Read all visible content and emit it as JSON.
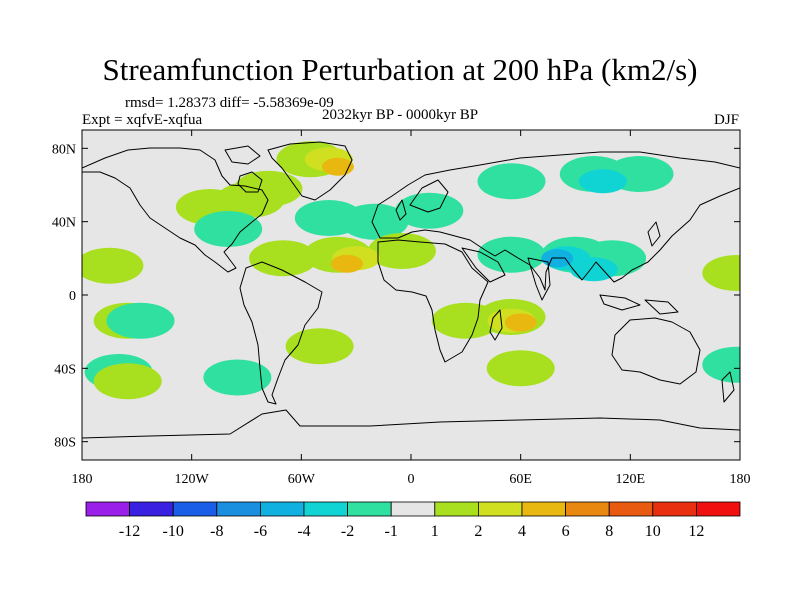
{
  "chart_data": {
    "type": "heatmap",
    "title": "Streamfunction Perturbation at 200 hPa (km2/s)",
    "stats": "rmsd= 1.28373 diff= -5.58369e-09",
    "experiment": "Expt = xqfvE-xqfua",
    "period": "2032kyr BP - 0000kyr BP",
    "season": "DJF",
    "x_range": [
      -180,
      180
    ],
    "y_range": [
      -90,
      90
    ],
    "x_ticks": [
      {
        "value": -180,
        "label": "180"
      },
      {
        "value": -120,
        "label": "120W"
      },
      {
        "value": -60,
        "label": "60W"
      },
      {
        "value": 0,
        "label": "0"
      },
      {
        "value": 60,
        "label": "60E"
      },
      {
        "value": 120,
        "label": "120E"
      },
      {
        "value": 180,
        "label": "180"
      }
    ],
    "y_ticks": [
      {
        "value": 80,
        "label": "80N"
      },
      {
        "value": 40,
        "label": "40N"
      },
      {
        "value": 0,
        "label": "0"
      },
      {
        "value": -40,
        "label": "40S"
      },
      {
        "value": -80,
        "label": "80S"
      }
    ],
    "colorbar": {
      "labels": [
        "-12",
        "-10",
        "-8",
        "-6",
        "-4",
        "-2",
        "-1",
        "1",
        "2",
        "4",
        "6",
        "8",
        "10",
        "12"
      ],
      "colors": [
        "#9a1fe8",
        "#3a20e0",
        "#1a5ee8",
        "#1a8fe0",
        "#10b0e0",
        "#10d4d4",
        "#30e0a0",
        "#e6e6e6",
        "#a8e020",
        "#d0e020",
        "#e8b810",
        "#e88810",
        "#e85a10",
        "#e83010",
        "#f01010"
      ]
    },
    "anomalies": [
      {
        "lon": -55,
        "lat": 74,
        "level": 1
      },
      {
        "lon": -45,
        "lat": 74,
        "level": 2
      },
      {
        "lon": -40,
        "lat": 70,
        "level": 3
      },
      {
        "lon": -88,
        "lat": 52,
        "level": 1
      },
      {
        "lon": -78,
        "lat": 58,
        "level": 1
      },
      {
        "lon": -110,
        "lat": 48,
        "level": 1
      },
      {
        "lon": -45,
        "lat": 42,
        "level": -1
      },
      {
        "lon": -20,
        "lat": 40,
        "level": -1
      },
      {
        "lon": 10,
        "lat": 46,
        "level": -1
      },
      {
        "lon": 55,
        "lat": 62,
        "level": -1
      },
      {
        "lon": 100,
        "lat": 66,
        "level": -1
      },
      {
        "lon": 125,
        "lat": 66,
        "level": -1
      },
      {
        "lon": 105,
        "lat": 62,
        "level": -2
      },
      {
        "lon": -100,
        "lat": 36,
        "level": -1
      },
      {
        "lon": 55,
        "lat": 22,
        "level": -1
      },
      {
        "lon": 90,
        "lat": 22,
        "level": -1
      },
      {
        "lon": 110,
        "lat": 20,
        "level": -1
      },
      {
        "lon": 85,
        "lat": 20,
        "level": -2
      },
      {
        "lon": 80,
        "lat": 20,
        "level": -3
      },
      {
        "lon": 100,
        "lat": 14,
        "level": -2
      },
      {
        "lon": -40,
        "lat": 22,
        "level": 1
      },
      {
        "lon": -30,
        "lat": 20,
        "level": 2
      },
      {
        "lon": -35,
        "lat": 17,
        "level": 3
      },
      {
        "lon": -70,
        "lat": 20,
        "level": 1
      },
      {
        "lon": -5,
        "lat": 24,
        "level": 1
      },
      {
        "lon": -165,
        "lat": 16,
        "level": 1
      },
      {
        "lon": 178,
        "lat": 12,
        "level": 1
      },
      {
        "lon": -155,
        "lat": -14,
        "level": 1
      },
      {
        "lon": -148,
        "lat": -14,
        "level": -1
      },
      {
        "lon": 30,
        "lat": -14,
        "level": 1
      },
      {
        "lon": 55,
        "lat": -12,
        "level": 1
      },
      {
        "lon": 55,
        "lat": -14,
        "level": 2
      },
      {
        "lon": 60,
        "lat": -15,
        "level": 3
      },
      {
        "lon": -50,
        "lat": -28,
        "level": 1
      },
      {
        "lon": -160,
        "lat": -42,
        "level": -1
      },
      {
        "lon": -95,
        "lat": -45,
        "level": -1
      },
      {
        "lon": 60,
        "lat": -40,
        "level": 1
      },
      {
        "lon": -155,
        "lat": -47,
        "level": 1
      },
      {
        "lon": 178,
        "lat": -38,
        "level": -1
      }
    ]
  }
}
